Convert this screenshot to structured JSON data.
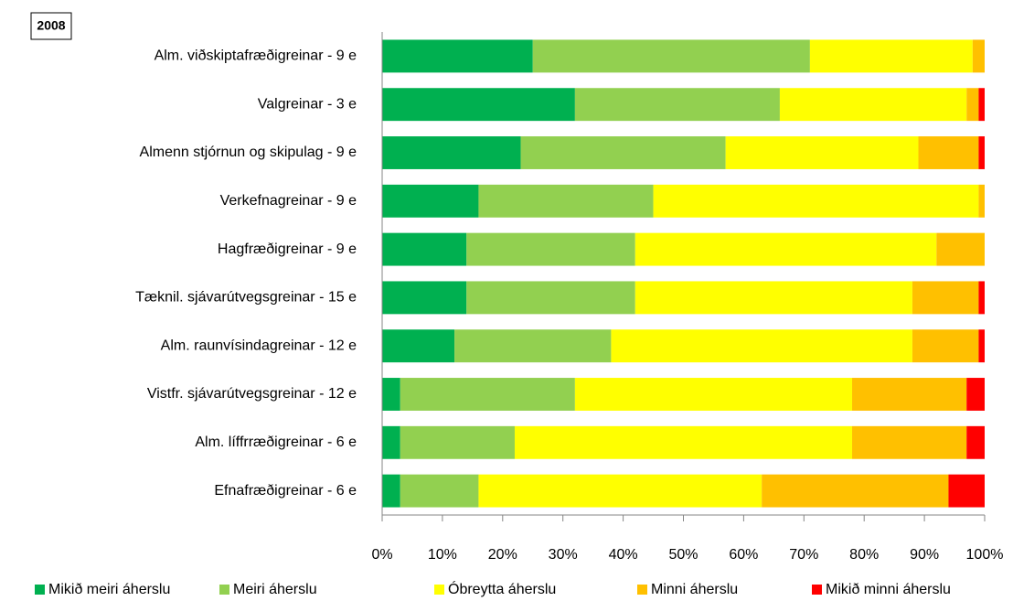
{
  "chart_data": {
    "type": "stacked_bar_horizontal",
    "annotation": "2008",
    "categories": [
      "Alm. viðskiptafræðigreinar - 9 e",
      "Valgreinar - 3 e",
      "Almenn stjórnun og skipulag - 9 e",
      "Verkefnagreinar - 9 e",
      "Hagfræðigreinar - 9 e",
      "Tæknil. sjávarútvegsgreinar - 15 e",
      "Alm. raunvísindagreinar - 12 e",
      "Vistfr. sjávarútvegsgreinar - 12 e",
      "Alm. líffrræðigreinar - 6 e",
      "Efnafræðigreinar - 6 e"
    ],
    "series": [
      {
        "name": "Mikið meiri áherslu",
        "color": "#00b050",
        "values": [
          25,
          32,
          23,
          16,
          14,
          14,
          12,
          3,
          3,
          3
        ]
      },
      {
        "name": "Meiri áherslu",
        "color": "#92d050",
        "values": [
          46,
          34,
          34,
          29,
          28,
          28,
          26,
          29,
          19,
          13
        ]
      },
      {
        "name": "Óbreytta áherslu",
        "color": "#ffff00",
        "values": [
          27,
          31,
          32,
          54,
          50,
          46,
          50,
          46,
          56,
          47
        ]
      },
      {
        "name": "Minni áherslu",
        "color": "#ffc000",
        "values": [
          2,
          2,
          10,
          1,
          8,
          11,
          11,
          19,
          19,
          31
        ]
      },
      {
        "name": "Mikið minni áherslu",
        "color": "#ff0000",
        "values": [
          0,
          1,
          1,
          0,
          0,
          1,
          1,
          3,
          3,
          6
        ]
      }
    ],
    "xlim": [
      0,
      100
    ],
    "xticks": [
      {
        "value": 0,
        "label": "0%"
      },
      {
        "value": 10,
        "label": "10%"
      },
      {
        "value": 20,
        "label": "20%"
      },
      {
        "value": 30,
        "label": "30%"
      },
      {
        "value": 40,
        "label": "40%"
      },
      {
        "value": 50,
        "label": "50%"
      },
      {
        "value": 60,
        "label": "60%"
      },
      {
        "value": 70,
        "label": "70%"
      },
      {
        "value": 80,
        "label": "80%"
      },
      {
        "value": 90,
        "label": "90%"
      },
      {
        "value": 100,
        "label": "100%"
      }
    ],
    "legend": "bottom"
  }
}
